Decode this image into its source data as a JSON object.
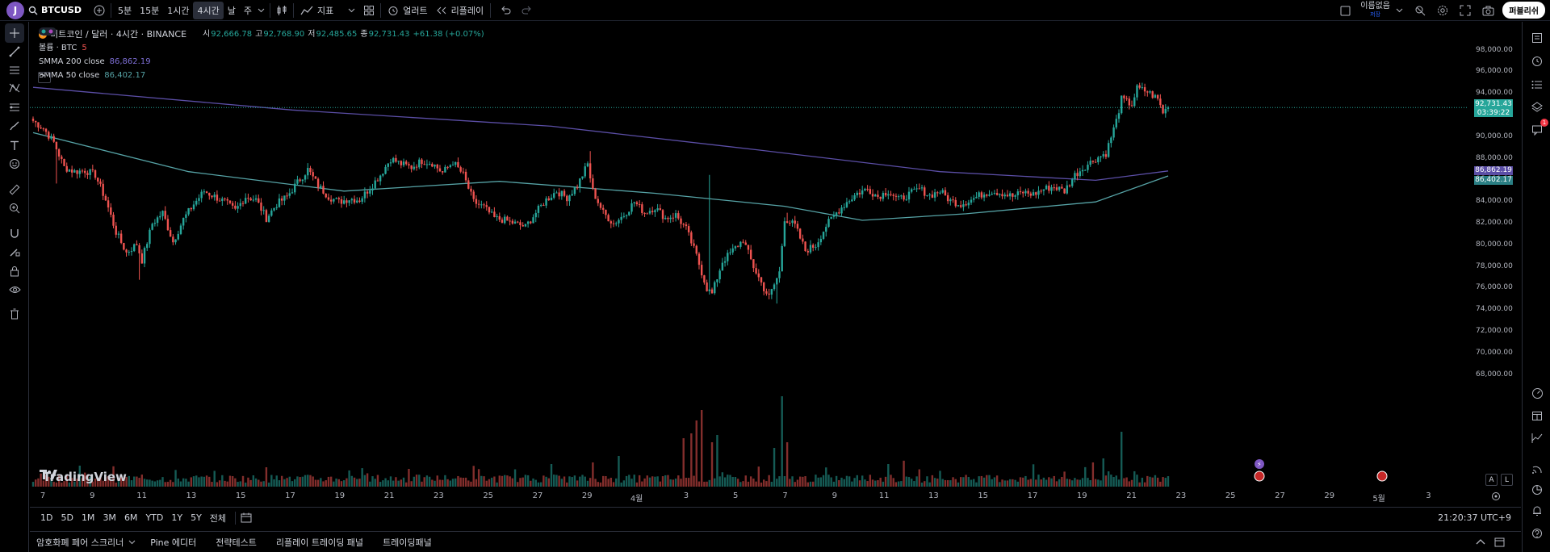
{
  "topbar": {
    "avatar_letter": "J",
    "symbol": "BTCUSD",
    "intervals": [
      "5분",
      "15분",
      "1시간",
      "4시간",
      "날",
      "주"
    ],
    "active_interval": "4시간",
    "indicators_label": "지표",
    "alerts_label": "얼러트",
    "replay_label": "리플레이",
    "user_name": "이름없음",
    "user_sub": "저장",
    "publish_label": "퍼블리쉬"
  },
  "legend": {
    "title": "비트코인 / 달러 · 4시간 · BINANCE",
    "open_k": "시",
    "open_v": "92,666.78",
    "high_k": "고",
    "high_v": "92,768.90",
    "low_k": "저",
    "low_v": "92,485.65",
    "close_k": "종",
    "close_v": "92,731.43",
    "change": "+61.38 (+0.07%)",
    "volume_label": "볼륨 · BTC",
    "volume_value": "5",
    "smma200_label": "SMMA 200 close",
    "smma200_value": "86,862.19",
    "smma50_label": "SMMA 50 close",
    "smma50_value": "86,402.17"
  },
  "price_axis": {
    "labels": [
      "98,000.00",
      "96,000.00",
      "94,000.00",
      "92,000.00",
      "90,000.00",
      "88,000.00",
      "86,000.00",
      "84,000.00",
      "82,000.00",
      "80,000.00",
      "78,000.00",
      "76,000.00",
      "74,000.00",
      "72,000.00",
      "70,000.00",
      "68,000.00"
    ],
    "last_price": "92,731.43",
    "countdown": "03:39:22",
    "smma200_tag": "86,862.19",
    "smma50_tag": "86,402.17"
  },
  "time_axis": {
    "labels": [
      "7",
      "9",
      "11",
      "13",
      "15",
      "17",
      "19",
      "21",
      "23",
      "25",
      "27",
      "29",
      "4월",
      "3",
      "5",
      "7",
      "9",
      "11",
      "13",
      "15",
      "17",
      "19",
      "21",
      "23",
      "25",
      "27",
      "29",
      "5월",
      "3"
    ]
  },
  "colors": {
    "up": "#26a69a",
    "down": "#ef5350",
    "smma200": "#5b4ea6",
    "smma50": "#56a3a6",
    "background": "#000000"
  },
  "branding": {
    "logo_text": "TradingView"
  },
  "axis_buttons": {
    "auto": "A",
    "log": "L"
  },
  "range_bar": {
    "ranges": [
      "1D",
      "5D",
      "1M",
      "3M",
      "6M",
      "YTD",
      "1Y",
      "5Y",
      "전체"
    ],
    "clock": "21:20:37 UTC+9"
  },
  "bottom_bar": {
    "tabs": [
      "암호화폐 페어 스크리너",
      "Pine 에디터",
      "전략테스트",
      "리플레이 트레이딩 패널",
      "트레이딩패널"
    ]
  },
  "right_toolbar": {
    "alert_badge": "1"
  },
  "chart_data": {
    "type": "candlestick",
    "xlabel": "",
    "ylabel": "",
    "ylim": [
      67000,
      99000
    ],
    "x_ticks": [
      "7",
      "9",
      "11",
      "13",
      "15",
      "17",
      "19",
      "21",
      "23",
      "25",
      "27",
      "29",
      "4월",
      "3",
      "5",
      "7",
      "9",
      "11",
      "13",
      "15",
      "17",
      "19",
      "21",
      "23",
      "25",
      "27",
      "29",
      "5월",
      "3"
    ],
    "anchors": [
      [
        0,
        91500
      ],
      [
        4,
        90800
      ],
      [
        8,
        89500
      ],
      [
        12,
        87200
      ],
      [
        16,
        86800
      ],
      [
        20,
        86900
      ],
      [
        24,
        86500
      ],
      [
        28,
        84200
      ],
      [
        32,
        81200
      ],
      [
        36,
        79300
      ],
      [
        40,
        80100
      ],
      [
        42,
        78600
      ],
      [
        46,
        82000
      ],
      [
        50,
        83000
      ],
      [
        54,
        80300
      ],
      [
        58,
        82400
      ],
      [
        62,
        83800
      ],
      [
        66,
        85000
      ],
      [
        70,
        84500
      ],
      [
        74,
        84000
      ],
      [
        78,
        83200
      ],
      [
        82,
        84500
      ],
      [
        86,
        84200
      ],
      [
        90,
        82500
      ],
      [
        94,
        83800
      ],
      [
        98,
        84500
      ],
      [
        102,
        85800
      ],
      [
        106,
        87000
      ],
      [
        110,
        85500
      ],
      [
        114,
        84500
      ],
      [
        118,
        84000
      ],
      [
        122,
        84300
      ],
      [
        126,
        84200
      ],
      [
        130,
        85300
      ],
      [
        134,
        86500
      ],
      [
        138,
        88000
      ],
      [
        142,
        87500
      ],
      [
        146,
        87200
      ],
      [
        150,
        87800
      ],
      [
        154,
        87600
      ],
      [
        158,
        86700
      ],
      [
        162,
        87700
      ],
      [
        166,
        86500
      ],
      [
        170,
        84000
      ],
      [
        174,
        83500
      ],
      [
        178,
        82500
      ],
      [
        182,
        82300
      ],
      [
        186,
        82000
      ],
      [
        190,
        81700
      ],
      [
        194,
        83000
      ],
      [
        198,
        84200
      ],
      [
        202,
        85000
      ],
      [
        206,
        84400
      ],
      [
        210,
        85500
      ],
      [
        214,
        87500
      ],
      [
        216,
        85000
      ],
      [
        220,
        83000
      ],
      [
        224,
        82000
      ],
      [
        228,
        82800
      ],
      [
        232,
        84000
      ],
      [
        236,
        83000
      ],
      [
        240,
        83500
      ],
      [
        244,
        82500
      ],
      [
        248,
        82800
      ],
      [
        252,
        81500
      ],
      [
        256,
        79000
      ],
      [
        260,
        76000
      ],
      [
        262,
        75500
      ],
      [
        266,
        78500
      ],
      [
        270,
        79500
      ],
      [
        274,
        80500
      ],
      [
        278,
        78000
      ],
      [
        282,
        76000
      ],
      [
        284,
        75200
      ],
      [
        288,
        77500
      ],
      [
        290,
        82500
      ],
      [
        294,
        81800
      ],
      [
        298,
        79500
      ],
      [
        302,
        80000
      ],
      [
        306,
        81800
      ],
      [
        310,
        83000
      ],
      [
        314,
        84000
      ],
      [
        318,
        84800
      ],
      [
        322,
        85200
      ],
      [
        326,
        84500
      ],
      [
        330,
        85000
      ],
      [
        334,
        84200
      ],
      [
        338,
        84700
      ],
      [
        342,
        85200
      ],
      [
        346,
        84600
      ],
      [
        350,
        85000
      ],
      [
        354,
        84100
      ],
      [
        358,
        83800
      ],
      [
        362,
        84200
      ],
      [
        366,
        84700
      ],
      [
        370,
        85000
      ],
      [
        374,
        84800
      ],
      [
        378,
        84500
      ],
      [
        382,
        84900
      ],
      [
        386,
        84700
      ],
      [
        390,
        85200
      ],
      [
        394,
        85400
      ],
      [
        398,
        85000
      ],
      [
        402,
        86500
      ],
      [
        406,
        87300
      ],
      [
        410,
        88000
      ],
      [
        414,
        88500
      ],
      [
        418,
        91500
      ],
      [
        420,
        93500
      ],
      [
        424,
        93000
      ],
      [
        426,
        94500
      ],
      [
        430,
        94200
      ],
      [
        434,
        93500
      ],
      [
        436,
        92300
      ],
      [
        438,
        92731
      ]
    ],
    "spikes": [
      {
        "i": 41,
        "low": 76800
      },
      {
        "i": 215,
        "high": 88700
      },
      {
        "i": 287,
        "low": 74600
      },
      {
        "i": 291,
        "high": 83000
      },
      {
        "i": 261,
        "high": 86500
      },
      {
        "i": 9,
        "low": 85700
      }
    ],
    "smma200": [
      [
        0,
        94600
      ],
      [
        100,
        92500
      ],
      [
        200,
        91000
      ],
      [
        280,
        88800
      ],
      [
        350,
        86800
      ],
      [
        410,
        86000
      ],
      [
        438,
        86862
      ]
    ],
    "smma50": [
      [
        0,
        90400
      ],
      [
        60,
        86800
      ],
      [
        120,
        85000
      ],
      [
        180,
        85900
      ],
      [
        240,
        84800
      ],
      [
        290,
        83600
      ],
      [
        320,
        82300
      ],
      [
        360,
        82900
      ],
      [
        410,
        84000
      ],
      [
        438,
        86402
      ]
    ],
    "volume": {
      "base": 5,
      "spikes": [
        [
          251,
          60
        ],
        [
          254,
          66
        ],
        [
          256,
          82
        ],
        [
          258,
          95
        ],
        [
          262,
          55
        ],
        [
          264,
          64
        ],
        [
          286,
          48
        ],
        [
          289,
          112
        ],
        [
          291,
          55
        ],
        [
          413,
          35
        ],
        [
          420,
          68
        ],
        [
          409,
          30
        ],
        [
          330,
          28
        ],
        [
          226,
          38
        ],
        [
          216,
          30
        ],
        [
          200,
          28
        ],
        [
          145,
          22
        ],
        [
          90,
          24
        ],
        [
          18,
          26
        ]
      ]
    }
  }
}
